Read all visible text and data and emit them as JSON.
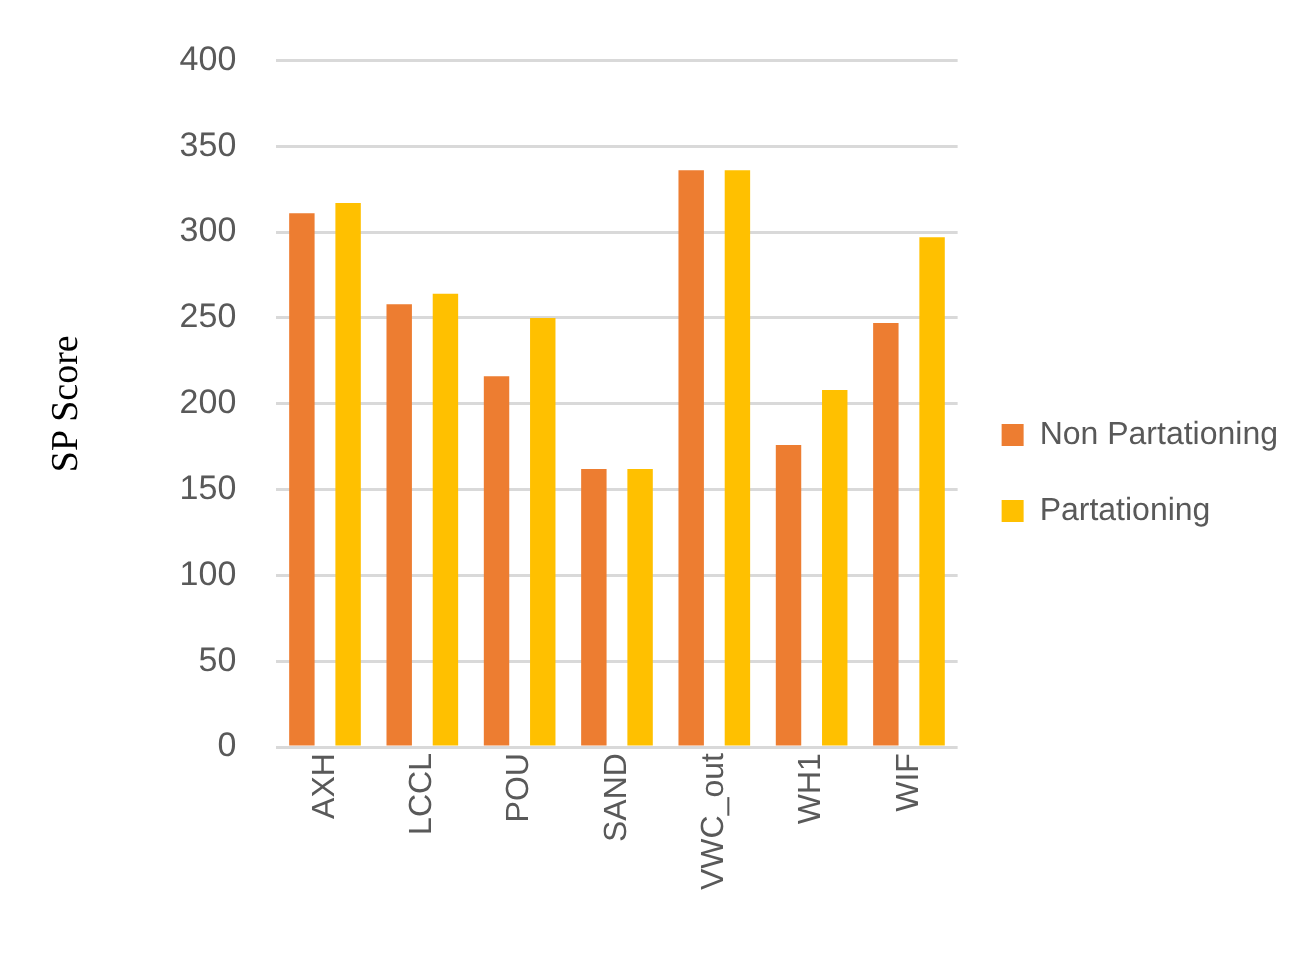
{
  "chart_data": {
    "type": "bar",
    "ylabel": "SP Score",
    "categories": [
      "AXH",
      "LCCL",
      "POU",
      "SAND",
      "VWC_out",
      "WH1",
      "WIF"
    ],
    "series": [
      {
        "name": "Non Partationing",
        "color": "#ed7d31",
        "values": [
          311,
          258,
          216,
          162,
          336,
          176,
          247
        ]
      },
      {
        "name": "Partationing",
        "color": "#ffc000",
        "values": [
          317,
          264,
          250,
          162,
          336,
          208,
          297
        ]
      }
    ],
    "ylim": [
      0,
      400
    ],
    "yticks": [
      0,
      50,
      100,
      150,
      200,
      250,
      300,
      350,
      400
    ],
    "grid": "y",
    "legend": "right"
  }
}
